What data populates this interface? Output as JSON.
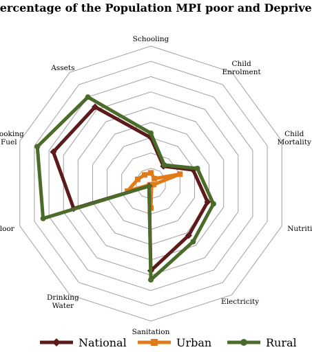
{
  "chart_data": {
    "type": "radar",
    "title": "Percentage of the Population MPI poor and Deprived",
    "categories": [
      "Schooling",
      "Child Enrolment",
      "Child Mortality",
      "Nutrition",
      "Electricity",
      "Sanitation",
      "Drinking Water",
      "Floor",
      "Cooking Fuel",
      "Assets"
    ],
    "range": [
      0,
      90
    ],
    "rings": 9,
    "grid": true,
    "legend_position": "bottom",
    "series": [
      {
        "name": "National",
        "color": "#5c1a1a",
        "marker": "diamond",
        "values": [
          30,
          14,
          29,
          39,
          42,
          57,
          2,
          53,
          67,
          62
        ]
      },
      {
        "name": "Urban",
        "color": "#e07b1a",
        "marker": "square",
        "values": [
          7,
          4,
          20,
          2,
          1,
          16,
          1,
          16,
          9,
          7
        ]
      },
      {
        "name": "Rural",
        "color": "#4a6b29",
        "marker": "circle",
        "values": [
          33,
          15,
          32,
          43,
          47,
          63,
          2,
          74,
          78,
          70
        ]
      }
    ]
  }
}
